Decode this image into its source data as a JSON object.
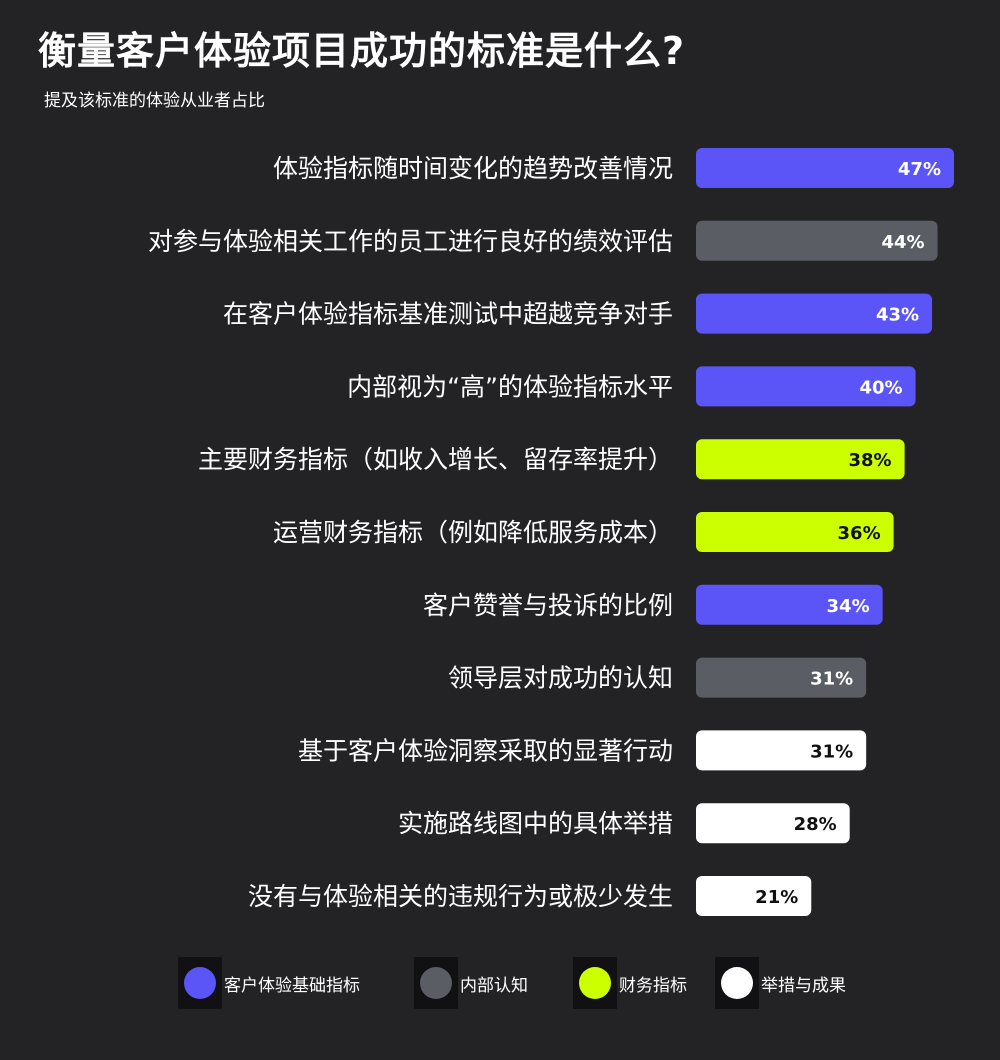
{
  "title": "衡量客户体验项目成功的标准是什么?",
  "subtitle": "提及该标准的体验从业者占比",
  "colors": {
    "background": "#232325",
    "customer_experience_basics": "#5b55f7",
    "internal_perception": "#5a5d63",
    "financial_metrics": "#ccff00",
    "actions_and_outcomes": "#ffffff"
  },
  "legend": [
    {
      "key": "customer_experience_basics",
      "label": "客户体验基础指标"
    },
    {
      "key": "internal_perception",
      "label": "内部认知"
    },
    {
      "key": "financial_metrics",
      "label": "财务指标"
    },
    {
      "key": "actions_and_outcomes",
      "label": "举措与成果"
    }
  ],
  "chart_data": {
    "type": "bar",
    "orientation": "horizontal",
    "title": "衡量客户体验项目成功的标准是什么?",
    "subtitle": "提及该标准的体验从业者占比",
    "unit": "%",
    "categories": [
      "体验指标随时间变化的趋势改善情况",
      "对参与体验相关工作的员工进行良好的绩效评估",
      "在客户体验指标基准测试中超越竞争对手",
      "内部视为“高”的体验指标水平",
      "主要财务指标（如收入增长、留存率提升）",
      "运营财务指标（例如降低服务成本）",
      "客户赞誉与投诉的比例",
      "领导层对成功的认知",
      "基于客户体验洞察采取的显著行动",
      "实施路线图中的具体举措",
      "没有与体验相关的违规行为或极少发生"
    ],
    "values": [
      47,
      44,
      43,
      40,
      38,
      36,
      34,
      31,
      31,
      28,
      21
    ],
    "data_labels": [
      "47%",
      "44%",
      "43%",
      "40%",
      "38%",
      "36%",
      "34%",
      "31%",
      "31%",
      "28%",
      "21%"
    ],
    "groups": [
      "customer_experience_basics",
      "internal_perception",
      "customer_experience_basics",
      "customer_experience_basics",
      "financial_metrics",
      "financial_metrics",
      "customer_experience_basics",
      "internal_perception",
      "actions_and_outcomes",
      "actions_and_outcomes",
      "actions_and_outcomes"
    ],
    "xlim": [
      0,
      47
    ],
    "grid": false,
    "legend_position": "bottom"
  }
}
